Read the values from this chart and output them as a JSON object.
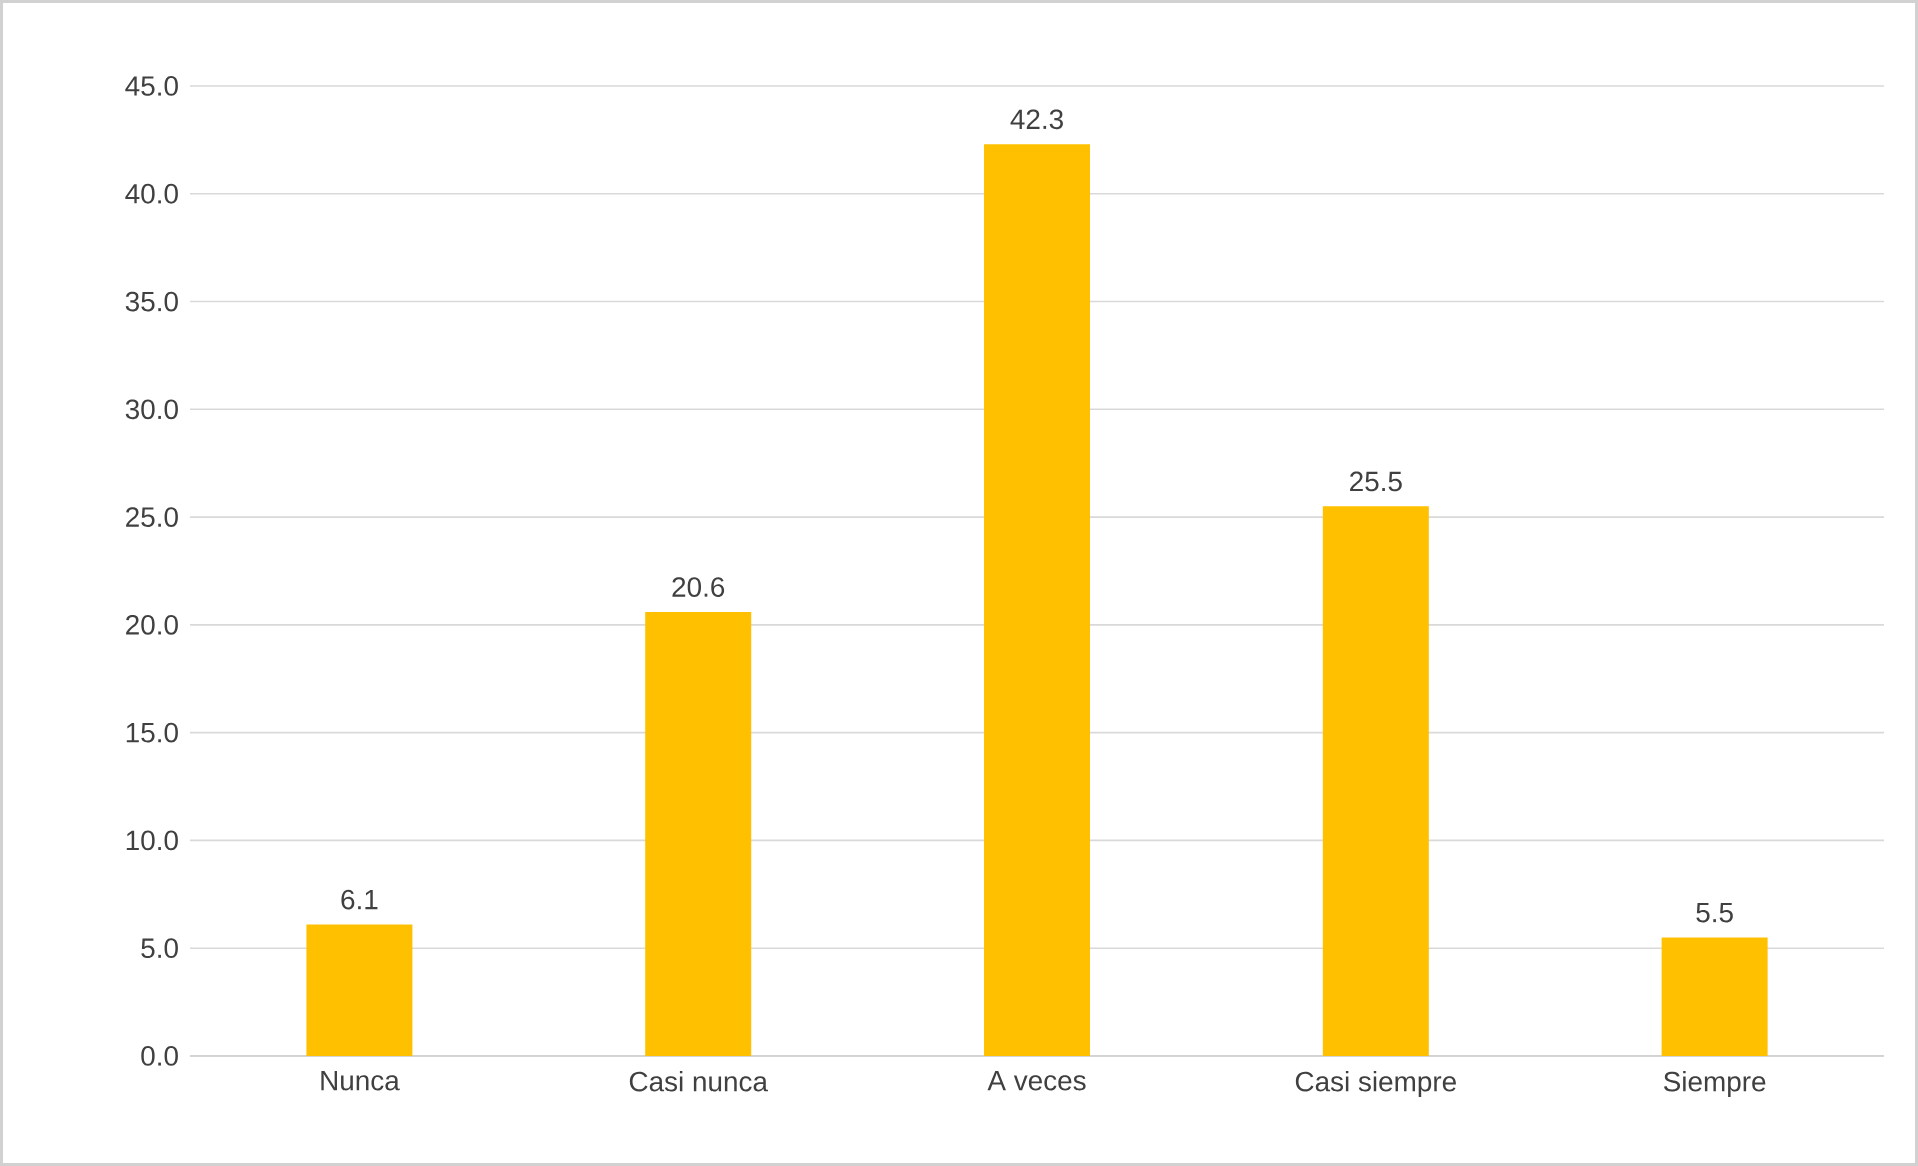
{
  "chart_data": {
    "type": "bar",
    "categories": [
      "Nunca",
      "Casi nunca",
      "A veces",
      "Casi siempre",
      "Siempre"
    ],
    "values": [
      6.1,
      20.6,
      42.3,
      25.5,
      5.5
    ],
    "color": "#ffc000",
    "ylim": [
      0,
      45
    ],
    "yticks": [
      {
        "value": 0,
        "label": "0.0"
      },
      {
        "value": 5,
        "label": "5.0"
      },
      {
        "value": 10,
        "label": "10.0"
      },
      {
        "value": 15,
        "label": "15.0"
      },
      {
        "value": 20,
        "label": "20.0"
      },
      {
        "value": 25,
        "label": "25.0"
      },
      {
        "value": 30,
        "label": "30.0"
      },
      {
        "value": 35,
        "label": "35.0"
      },
      {
        "value": 40,
        "label": "40.0"
      },
      {
        "value": 45,
        "label": "45.0"
      }
    ],
    "grid": "y",
    "data_labels": true
  }
}
